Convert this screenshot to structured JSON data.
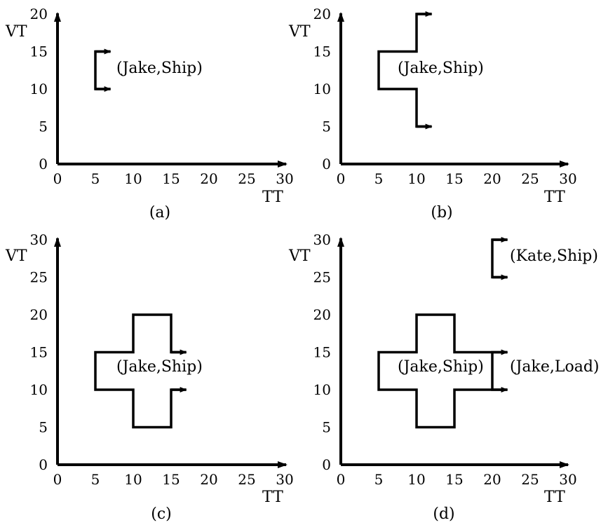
{
  "panels": [
    {
      "caption": "(a)",
      "xlabel": "TT",
      "ylabel": "VT",
      "x_ticks": [
        0,
        5,
        10,
        15,
        20,
        25,
        30
      ],
      "y_ticks": [
        0,
        5,
        10,
        15,
        20
      ],
      "x_range": [
        0,
        30
      ],
      "y_range": [
        0,
        20
      ],
      "shapes": [
        {
          "label": "(Jake,Ship)",
          "vertices": [
            [
              7,
              15
            ],
            [
              5,
              15
            ],
            [
              5,
              10
            ],
            [
              7,
              10
            ]
          ],
          "open_arrows": true
        }
      ]
    },
    {
      "caption": "(b)",
      "xlabel": "TT",
      "ylabel": "VT",
      "x_ticks": [
        0,
        5,
        10,
        15,
        20,
        25,
        30
      ],
      "y_ticks": [
        0,
        5,
        10,
        15,
        20
      ],
      "x_range": [
        0,
        30
      ],
      "y_range": [
        0,
        20
      ],
      "shapes": [
        {
          "label": "(Jake,Ship)",
          "vertices": [
            [
              12,
              20
            ],
            [
              10,
              20
            ],
            [
              10,
              15
            ],
            [
              5,
              15
            ],
            [
              5,
              10
            ],
            [
              10,
              10
            ],
            [
              10,
              5
            ],
            [
              12,
              5
            ]
          ],
          "open_arrows": true
        }
      ]
    },
    {
      "caption": "(c)",
      "xlabel": "TT",
      "ylabel": "VT",
      "x_ticks": [
        0,
        5,
        10,
        15,
        20,
        25,
        30
      ],
      "y_ticks": [
        0,
        5,
        10,
        15,
        20,
        25,
        30
      ],
      "x_range": [
        0,
        30
      ],
      "y_range": [
        0,
        30
      ],
      "shapes": [
        {
          "label": "(Jake,Ship)",
          "vertices": [
            [
              17,
              15
            ],
            [
              15,
              15
            ],
            [
              15,
              20
            ],
            [
              10,
              20
            ],
            [
              10,
              15
            ],
            [
              5,
              15
            ],
            [
              5,
              10
            ],
            [
              10,
              10
            ],
            [
              10,
              5
            ],
            [
              15,
              5
            ],
            [
              15,
              10
            ],
            [
              17,
              10
            ]
          ],
          "open_arrows": true
        }
      ]
    },
    {
      "caption": "(d)",
      "xlabel": "TT",
      "ylabel": "VT",
      "x_ticks": [
        0,
        5,
        10,
        15,
        20,
        25,
        30
      ],
      "y_ticks": [
        0,
        5,
        10,
        15,
        20,
        25,
        30
      ],
      "x_range": [
        0,
        30
      ],
      "y_range": [
        0,
        30
      ],
      "shapes": [
        {
          "label": "(Kate,Ship)",
          "vertices": [
            [
              22,
              30
            ],
            [
              20,
              30
            ],
            [
              20,
              25
            ],
            [
              22,
              25
            ]
          ],
          "open_arrows": true
        },
        {
          "label": "(Jake,Ship)",
          "vertices": [
            [
              20,
              15
            ],
            [
              15,
              15
            ],
            [
              15,
              20
            ],
            [
              10,
              20
            ],
            [
              10,
              15
            ],
            [
              5,
              15
            ],
            [
              5,
              10
            ],
            [
              10,
              10
            ],
            [
              10,
              5
            ],
            [
              15,
              5
            ],
            [
              15,
              10
            ],
            [
              20,
              10
            ]
          ],
          "closed": true
        },
        {
          "label": "(Jake,Load)",
          "vertices": [
            [
              22,
              15
            ],
            [
              20,
              15
            ],
            [
              20,
              10
            ],
            [
              22,
              10
            ]
          ],
          "open_arrows": true
        }
      ]
    }
  ]
}
